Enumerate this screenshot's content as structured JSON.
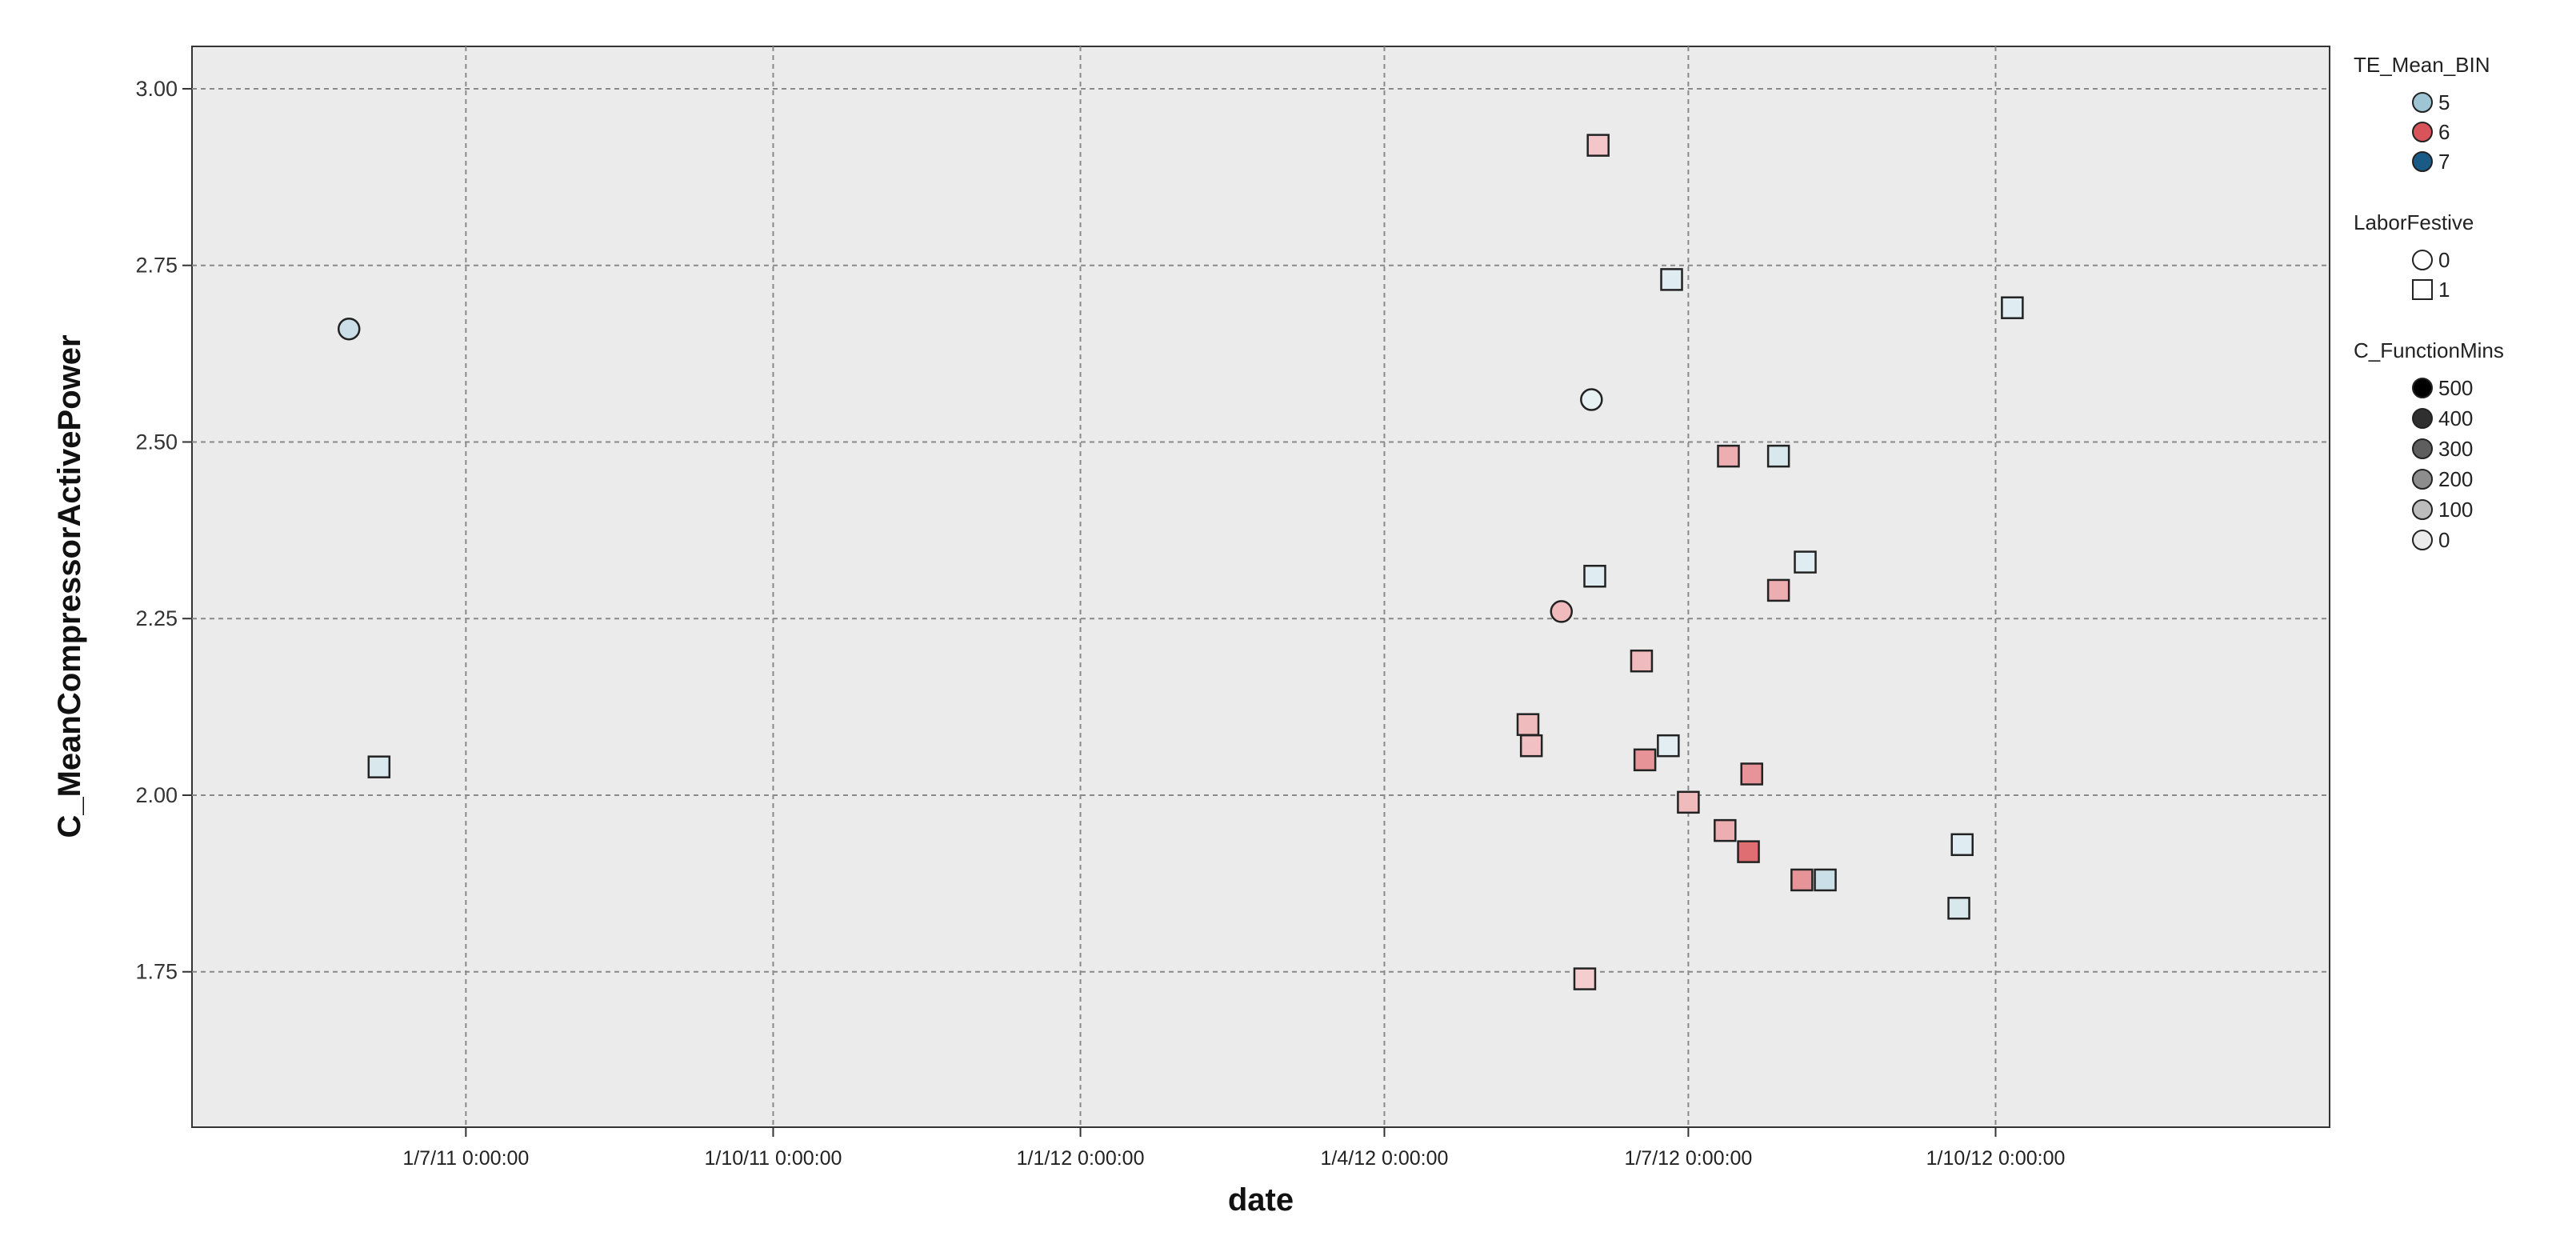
{
  "chart_data": {
    "type": "scatter",
    "xlabel": "date",
    "ylabel": "C_MeanCompressorActivePower",
    "x_axis": {
      "type": "date",
      "range": [
        "2011-04-10",
        "2013-01-09"
      ],
      "ticks": [
        {
          "value": "2011-07-01",
          "label": "1/7/11 0:00:00"
        },
        {
          "value": "2011-10-01",
          "label": "1/10/11 0:00:00"
        },
        {
          "value": "2012-01-01",
          "label": "1/1/12 0:00:00"
        },
        {
          "value": "2012-04-01",
          "label": "1/4/12 0:00:00"
        },
        {
          "value": "2012-07-01",
          "label": "1/7/12 0:00:00"
        },
        {
          "value": "2012-10-01",
          "label": "1/10/12 0:00:00"
        }
      ]
    },
    "y_axis": {
      "range": [
        1.53,
        3.06
      ],
      "ticks": [
        {
          "value": 1.75,
          "label": "1.75"
        },
        {
          "value": 2.0,
          "label": "2.00"
        },
        {
          "value": 2.25,
          "label": "2.25"
        },
        {
          "value": 2.5,
          "label": "2.50"
        },
        {
          "value": 2.75,
          "label": "2.75"
        },
        {
          "value": 3.0,
          "label": "3.00"
        }
      ]
    },
    "grid": true,
    "legend_position": "right",
    "points": [
      {
        "date": "2011-05-27",
        "y": 2.66,
        "te_bin": 5,
        "labor_festive": 0,
        "function_mins": 200
      },
      {
        "date": "2011-06-05",
        "y": 2.04,
        "te_bin": 5,
        "labor_festive": 1,
        "function_mins": 100
      },
      {
        "date": "2012-06-04",
        "y": 2.92,
        "te_bin": 6,
        "labor_festive": 1,
        "function_mins": 50
      },
      {
        "date": "2012-06-26",
        "y": 2.73,
        "te_bin": 5,
        "labor_festive": 1,
        "function_mins": 50
      },
      {
        "date": "2012-06-02",
        "y": 2.56,
        "te_bin": 5,
        "labor_festive": 0,
        "function_mins": 0
      },
      {
        "date": "2012-07-13",
        "y": 2.48,
        "te_bin": 6,
        "labor_festive": 1,
        "function_mins": 150
      },
      {
        "date": "2012-07-28",
        "y": 2.48,
        "te_bin": 5,
        "labor_festive": 1,
        "function_mins": 100
      },
      {
        "date": "2012-08-05",
        "y": 2.33,
        "te_bin": 5,
        "labor_festive": 1,
        "function_mins": 50
      },
      {
        "date": "2012-06-03",
        "y": 2.31,
        "te_bin": 5,
        "labor_festive": 1,
        "function_mins": 50
      },
      {
        "date": "2012-07-28",
        "y": 2.29,
        "te_bin": 6,
        "labor_festive": 1,
        "function_mins": 150
      },
      {
        "date": "2012-05-24",
        "y": 2.26,
        "te_bin": 6,
        "labor_festive": 0,
        "function_mins": 100
      },
      {
        "date": "2012-06-17",
        "y": 2.19,
        "te_bin": 6,
        "labor_festive": 1,
        "function_mins": 100
      },
      {
        "date": "2012-05-14",
        "y": 2.1,
        "te_bin": 6,
        "labor_festive": 1,
        "function_mins": 100
      },
      {
        "date": "2012-05-15",
        "y": 2.07,
        "te_bin": 6,
        "labor_festive": 1,
        "function_mins": 80
      },
      {
        "date": "2012-06-25",
        "y": 2.07,
        "te_bin": 5,
        "labor_festive": 1,
        "function_mins": 30
      },
      {
        "date": "2012-06-18",
        "y": 2.05,
        "te_bin": 6,
        "labor_festive": 1,
        "function_mins": 250
      },
      {
        "date": "2012-07-20",
        "y": 2.03,
        "te_bin": 6,
        "labor_festive": 1,
        "function_mins": 250
      },
      {
        "date": "2012-07-01",
        "y": 1.99,
        "te_bin": 6,
        "labor_festive": 1,
        "function_mins": 100
      },
      {
        "date": "2012-07-12",
        "y": 1.95,
        "te_bin": 6,
        "labor_festive": 1,
        "function_mins": 150
      },
      {
        "date": "2012-07-19",
        "y": 1.92,
        "te_bin": 6,
        "labor_festive": 1,
        "function_mins": 400
      },
      {
        "date": "2012-08-04",
        "y": 1.88,
        "te_bin": 6,
        "labor_festive": 1,
        "function_mins": 250
      },
      {
        "date": "2012-08-11",
        "y": 1.88,
        "te_bin": 5,
        "labor_festive": 1,
        "function_mins": 200
      },
      {
        "date": "2012-09-21",
        "y": 1.93,
        "te_bin": 5,
        "labor_festive": 1,
        "function_mins": 50
      },
      {
        "date": "2012-09-20",
        "y": 1.84,
        "te_bin": 5,
        "labor_festive": 1,
        "function_mins": 100
      },
      {
        "date": "2012-10-06",
        "y": 2.69,
        "te_bin": 5,
        "labor_festive": 1,
        "function_mins": 50
      },
      {
        "date": "2012-05-31",
        "y": 1.74,
        "te_bin": 6,
        "labor_festive": 1,
        "function_mins": 30
      }
    ],
    "legends": [
      {
        "title": "TE_Mean_BIN",
        "kind": "color",
        "items": [
          {
            "label": "5",
            "color": "#9ec5d3"
          },
          {
            "label": "6",
            "color": "#d9545a"
          },
          {
            "label": "7",
            "color": "#1a5a87"
          }
        ]
      },
      {
        "title": "LaborFestive",
        "kind": "shape",
        "items": [
          {
            "label": "0",
            "shape": "circle"
          },
          {
            "label": "1",
            "shape": "square"
          }
        ]
      },
      {
        "title": "C_FunctionMins",
        "kind": "intensity",
        "items": [
          {
            "label": "500",
            "value": 500
          },
          {
            "label": "400",
            "value": 400
          },
          {
            "label": "300",
            "value": 300
          },
          {
            "label": "200",
            "value": 200
          },
          {
            "label": "100",
            "value": 100
          },
          {
            "label": "0",
            "value": 0
          }
        ]
      }
    ]
  }
}
